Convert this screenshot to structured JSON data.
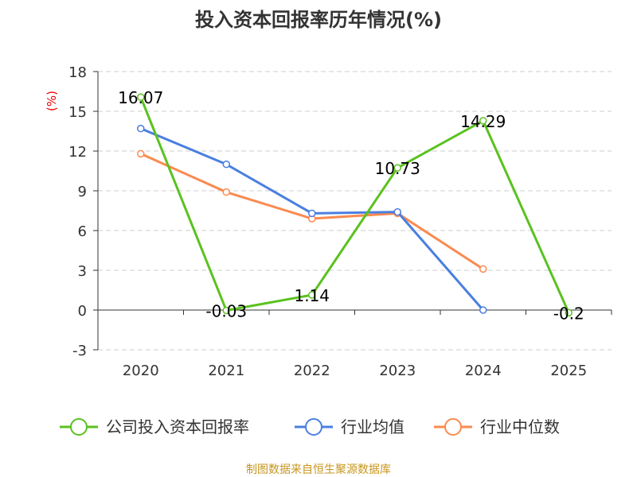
{
  "chart_data": {
    "type": "line",
    "title": "投入资本回报率历年情况(%)",
    "ylabel": "(%)",
    "xlabel": "",
    "categories": [
      "2020",
      "2021",
      "2022",
      "2023",
      "2024",
      "2025"
    ],
    "ylim": [
      -3,
      18
    ],
    "yticks": [
      -3,
      0,
      3,
      6,
      9,
      12,
      15,
      18
    ],
    "grid": true,
    "legend_position": "bottom",
    "series": [
      {
        "name": "公司投入资本回报率",
        "color": "#5ac21f",
        "values": [
          16.07,
          -0.03,
          1.14,
          10.73,
          14.29,
          -0.2
        ],
        "labels": [
          "16.07",
          "-0.03",
          "1.14",
          "10.73",
          "14.29",
          "-0.2"
        ]
      },
      {
        "name": "行业均值",
        "color": "#4a7fe0",
        "values": [
          13.7,
          11.0,
          7.3,
          7.4,
          0.0,
          null
        ]
      },
      {
        "name": "行业中位数",
        "color": "#fb8a50",
        "values": [
          11.8,
          8.9,
          6.9,
          7.3,
          3.1,
          null
        ]
      }
    ],
    "source": "制图数据来自恒生聚源数据库"
  }
}
